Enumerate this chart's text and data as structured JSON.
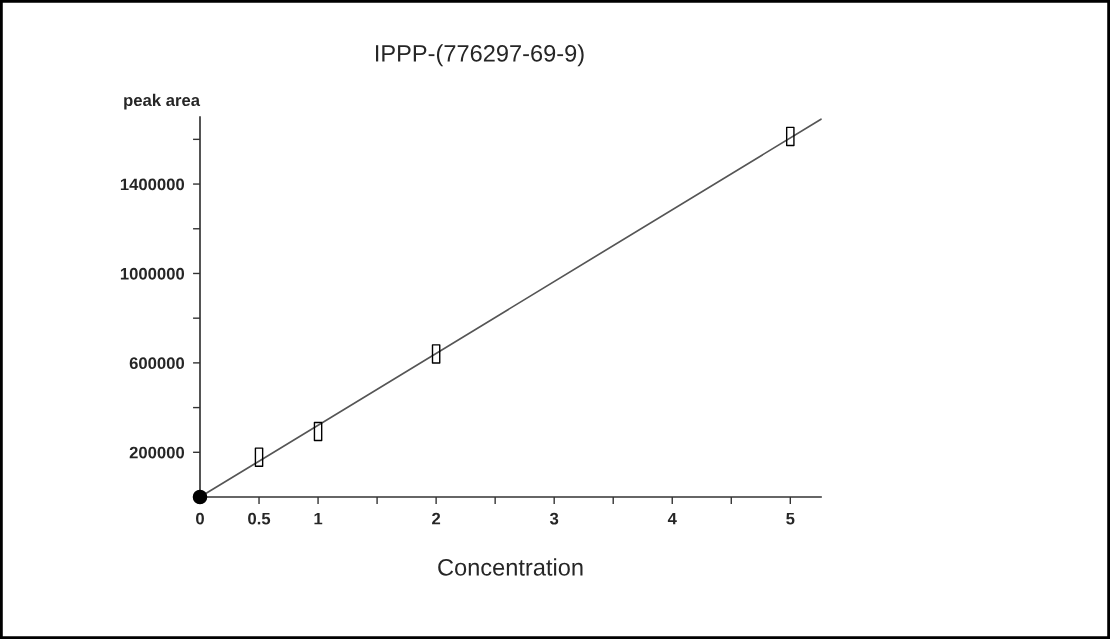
{
  "chart_data": {
    "type": "scatter",
    "title": "IPPP-(776297-69-9)",
    "xlabel": "Concentration",
    "ylabel": "peak area",
    "xlim": [
      0,
      5.26
    ],
    "ylim": [
      0,
      1700000
    ],
    "xticks": [
      0,
      0.5,
      1,
      {
        "value": 1.5,
        "label": null
      },
      2,
      {
        "value": 2.5,
        "label": null
      },
      3,
      {
        "value": 3.5,
        "label": null
      },
      4,
      {
        "value": 4.5,
        "label": null
      },
      5
    ],
    "yticks": [
      200000,
      {
        "value": 400000,
        "label": null
      },
      600000,
      {
        "value": 800000,
        "label": null
      },
      1000000,
      {
        "value": 1200000,
        "label": null
      },
      1400000,
      {
        "value": 1600000,
        "label": null
      }
    ],
    "grid": false,
    "legend": false,
    "series": [
      {
        "type": "line",
        "color": "#555555",
        "x": [
          0,
          5.26
        ],
        "values": [
          0,
          1690000
        ],
        "marker": "none",
        "line_style": "solid"
      },
      {
        "type": "scatter",
        "color": "#000000",
        "x": [
          0.5,
          1,
          2,
          5
        ],
        "values": [
          178000,
          293000,
          640000,
          1613000
        ],
        "marker": "square"
      },
      {
        "type": "scatter",
        "color": "#000000",
        "x": [
          0
        ],
        "values": [
          0
        ],
        "marker": "circle"
      }
    ]
  }
}
